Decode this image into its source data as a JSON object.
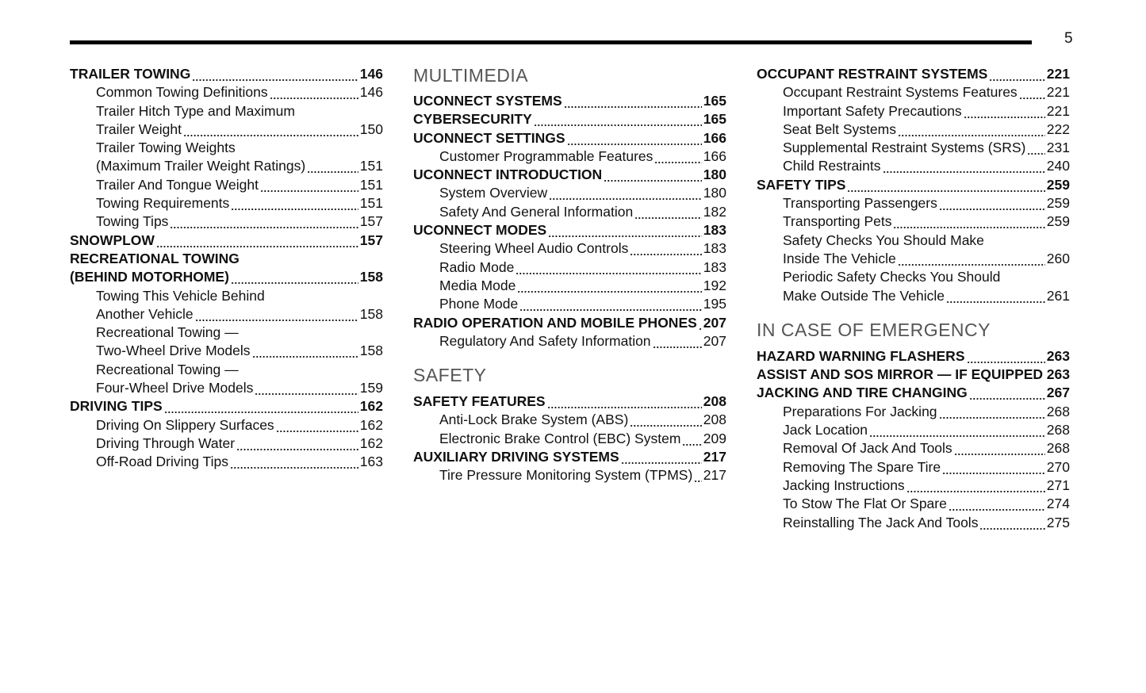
{
  "page_number": "5",
  "columns": [
    {
      "entries": [
        {
          "level": "main",
          "lines": [
            "TRAILER TOWING"
          ],
          "page": "146"
        },
        {
          "level": "sub",
          "lines": [
            "Common Towing Definitions"
          ],
          "page": "146"
        },
        {
          "level": "sub",
          "lines": [
            "Trailer Hitch Type and Maximum",
            "Trailer Weight"
          ],
          "page": "150"
        },
        {
          "level": "sub",
          "lines": [
            "Trailer Towing Weights",
            "(Maximum Trailer Weight Ratings)"
          ],
          "page": "151"
        },
        {
          "level": "sub",
          "lines": [
            "Trailer And Tongue Weight"
          ],
          "page": "151"
        },
        {
          "level": "sub",
          "lines": [
            "Towing Requirements"
          ],
          "page": "151"
        },
        {
          "level": "sub",
          "lines": [
            "Towing Tips"
          ],
          "page": "157"
        },
        {
          "level": "main",
          "lines": [
            "SNOWPLOW"
          ],
          "page": "157"
        },
        {
          "level": "main",
          "lines": [
            "RECREATIONAL TOWING",
            "(BEHIND MOTORHOME)"
          ],
          "page": "158"
        },
        {
          "level": "sub",
          "lines": [
            "Towing This Vehicle Behind",
            "Another Vehicle"
          ],
          "page": "158"
        },
        {
          "level": "sub",
          "lines": [
            "Recreational Towing —",
            "Two-Wheel Drive Models"
          ],
          "page": "158"
        },
        {
          "level": "sub",
          "lines": [
            "Recreational Towing —",
            "Four-Wheel Drive Models"
          ],
          "page": "159"
        },
        {
          "level": "main",
          "lines": [
            "DRIVING TIPS"
          ],
          "page": "162"
        },
        {
          "level": "sub",
          "lines": [
            "Driving On Slippery Surfaces"
          ],
          "page": "162"
        },
        {
          "level": "sub",
          "lines": [
            "Driving Through Water"
          ],
          "page": "162"
        },
        {
          "level": "sub",
          "lines": [
            "Off-Road Driving Tips"
          ],
          "page": "163"
        }
      ]
    },
    {
      "entries": [
        {
          "level": "heading",
          "text": "MULTIMEDIA"
        },
        {
          "level": "main",
          "lines": [
            "UCONNECT SYSTEMS"
          ],
          "page": "165"
        },
        {
          "level": "main",
          "lines": [
            "CYBERSECURITY"
          ],
          "page": "165"
        },
        {
          "level": "main",
          "lines": [
            "UCONNECT SETTINGS"
          ],
          "page": "166"
        },
        {
          "level": "sub",
          "lines": [
            "Customer Programmable Features"
          ],
          "page": "166"
        },
        {
          "level": "main",
          "lines": [
            "UCONNECT INTRODUCTION"
          ],
          "page": "180"
        },
        {
          "level": "sub",
          "lines": [
            "System Overview"
          ],
          "page": "180"
        },
        {
          "level": "sub",
          "lines": [
            "Safety And General Information"
          ],
          "page": "182"
        },
        {
          "level": "main",
          "lines": [
            "UCONNECT MODES"
          ],
          "page": "183"
        },
        {
          "level": "sub",
          "lines": [
            "Steering Wheel Audio Controls"
          ],
          "page": "183"
        },
        {
          "level": "sub",
          "lines": [
            "Radio Mode"
          ],
          "page": "183"
        },
        {
          "level": "sub",
          "lines": [
            "Media Mode"
          ],
          "page": "192"
        },
        {
          "level": "sub",
          "lines": [
            "Phone Mode"
          ],
          "page": "195"
        },
        {
          "level": "main",
          "lines": [
            "RADIO OPERATION AND MOBILE PHONES"
          ],
          "page": "207"
        },
        {
          "level": "sub",
          "lines": [
            "Regulatory And Safety Information"
          ],
          "page": "207"
        },
        {
          "level": "heading",
          "text": "SAFETY"
        },
        {
          "level": "main",
          "lines": [
            "SAFETY FEATURES"
          ],
          "page": "208"
        },
        {
          "level": "sub",
          "lines": [
            "Anti-Lock Brake System (ABS)"
          ],
          "page": "208"
        },
        {
          "level": "sub",
          "lines": [
            "Electronic Brake Control (EBC) System"
          ],
          "page": "209"
        },
        {
          "level": "main",
          "lines": [
            "AUXILIARY DRIVING SYSTEMS"
          ],
          "page": "217"
        },
        {
          "level": "sub",
          "lines": [
            "Tire Pressure Monitoring System (TPMS)"
          ],
          "page": "217"
        }
      ]
    },
    {
      "entries": [
        {
          "level": "main",
          "lines": [
            "OCCUPANT RESTRAINT SYSTEMS"
          ],
          "page": "221"
        },
        {
          "level": "sub",
          "lines": [
            "Occupant Restraint Systems Features"
          ],
          "page": "221"
        },
        {
          "level": "sub",
          "lines": [
            "Important Safety Precautions"
          ],
          "page": "221"
        },
        {
          "level": "sub",
          "lines": [
            "Seat Belt Systems"
          ],
          "page": "222"
        },
        {
          "level": "sub",
          "lines": [
            "Supplemental Restraint Systems (SRS)"
          ],
          "page": "231"
        },
        {
          "level": "sub",
          "lines": [
            "Child Restraints"
          ],
          "page": "240"
        },
        {
          "level": "main",
          "lines": [
            "SAFETY TIPS"
          ],
          "page": "259"
        },
        {
          "level": "sub",
          "lines": [
            "Transporting Passengers"
          ],
          "page": "259"
        },
        {
          "level": "sub",
          "lines": [
            "Transporting Pets"
          ],
          "page": "259"
        },
        {
          "level": "sub",
          "lines": [
            "Safety Checks You Should Make",
            "Inside The Vehicle"
          ],
          "page": "260"
        },
        {
          "level": "sub",
          "lines": [
            "Periodic Safety Checks You Should",
            "Make Outside The Vehicle"
          ],
          "page": "261"
        },
        {
          "level": "heading",
          "text": "IN CASE OF EMERGENCY"
        },
        {
          "level": "main",
          "lines": [
            "HAZARD WARNING FLASHERS"
          ],
          "page": "263"
        },
        {
          "level": "main",
          "lines": [
            "ASSIST AND SOS MIRROR — IF EQUIPPED"
          ],
          "page": "263"
        },
        {
          "level": "main",
          "lines": [
            "JACKING AND TIRE CHANGING"
          ],
          "page": "267"
        },
        {
          "level": "sub",
          "lines": [
            "Preparations For Jacking"
          ],
          "page": "268"
        },
        {
          "level": "sub",
          "lines": [
            "Jack Location"
          ],
          "page": "268"
        },
        {
          "level": "sub",
          "lines": [
            "Removal Of Jack And Tools"
          ],
          "page": "268"
        },
        {
          "level": "sub",
          "lines": [
            "Removing The Spare Tire"
          ],
          "page": "270"
        },
        {
          "level": "sub",
          "lines": [
            "Jacking Instructions"
          ],
          "page": "271"
        },
        {
          "level": "sub",
          "lines": [
            "To Stow The Flat Or Spare"
          ],
          "page": "274"
        },
        {
          "level": "sub",
          "lines": [
            "Reinstalling The Jack And Tools"
          ],
          "page": "275"
        }
      ]
    }
  ]
}
